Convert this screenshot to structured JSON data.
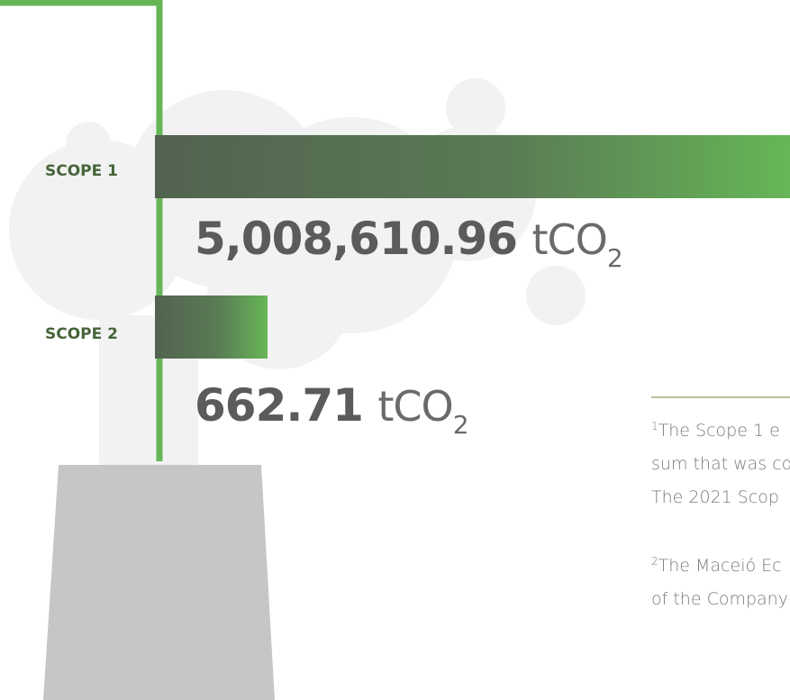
{
  "scopes": [
    {
      "label": "SCOPE 1",
      "value": "5,008,610.96",
      "unit": "tCO",
      "unit_sub": "2"
    },
    {
      "label": "SCOPE 2",
      "value": "662.71",
      "unit": "tCO",
      "unit_sub": "2"
    }
  ],
  "footnotes": [
    {
      "mark": "1",
      "lines": [
        "The  Scope 1 e",
        "sum that was co",
        "The 2021 Scop"
      ]
    },
    {
      "mark": "2",
      "lines": [
        "The Maceió Ec",
        "of the Company"
      ]
    }
  ]
}
